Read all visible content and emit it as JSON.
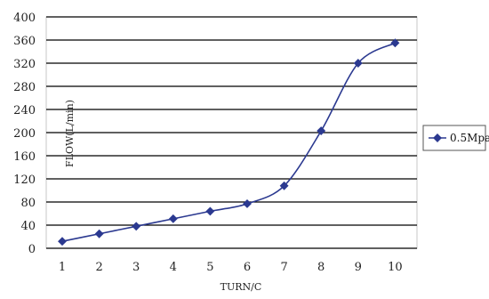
{
  "chart_data": {
    "type": "line",
    "xlabel": "TURN/C",
    "ylabel": "FLOW(L/min)",
    "categories": [
      "1",
      "2",
      "3",
      "4",
      "5",
      "6",
      "7",
      "8",
      "9",
      "10"
    ],
    "y_ticks": [
      "0",
      "40",
      "80",
      "120",
      "160",
      "200",
      "240",
      "280",
      "320",
      "360",
      "400"
    ],
    "ylim": [
      0,
      400
    ],
    "grid": true,
    "legend": "right",
    "series": [
      {
        "name": "0.5Mpa",
        "color": "#2b3990",
        "values": [
          12,
          25,
          38,
          51,
          64,
          77,
          108,
          203,
          320,
          355
        ]
      }
    ]
  }
}
